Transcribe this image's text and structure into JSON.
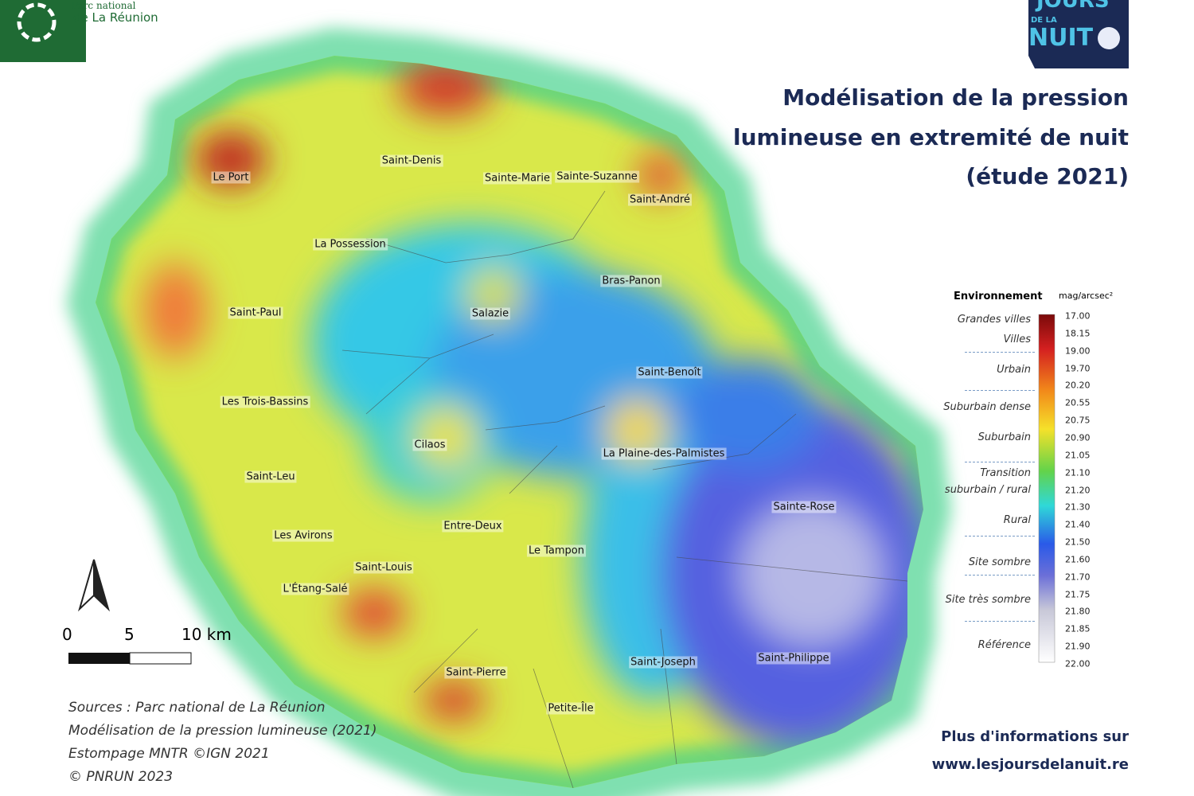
{
  "header": {
    "park_logo": {
      "line1": "Parc national",
      "line2": "de La Réunion"
    },
    "event_logo": {
      "line1": "JOURS",
      "line2": "DE LA",
      "line3": "NUIT"
    }
  },
  "title": {
    "lines": [
      "Modélisation de la pression",
      "lumineuse en extremité de nuit",
      "(étude 2021)"
    ]
  },
  "map": {
    "places": [
      "Le Port",
      "Saint-Denis",
      "Sainte-Marie",
      "Sainte-Suzanne",
      "Saint-André",
      "La Possession",
      "Bras-Panon",
      "Salazie",
      "Saint-Paul",
      "Saint-Benoît",
      "Les Trois-Bassins",
      "Cilaos",
      "La Plaine-des-Palmistes",
      "Saint-Leu",
      "Sainte-Rose",
      "Entre-Deux",
      "Les Avirons",
      "Le Tampon",
      "Saint-Louis",
      "L'Étang-Salé",
      "Saint-Joseph",
      "Saint-Philippe",
      "Saint-Pierre",
      "Petite-Île"
    ],
    "scale_bar": {
      "labels": [
        "0",
        "5",
        "10 km"
      ]
    }
  },
  "legend": {
    "title": "Environnement",
    "unit": "mag/arcsec²",
    "categories": [
      "Grandes villes",
      "Villes",
      "Urbain",
      "Suburbain dense",
      "Suburbain",
      "Transition\nsuburbain / rural",
      "Rural",
      "Site sombre",
      "Site très sombre",
      "Référence"
    ],
    "values": [
      "17.00",
      "18.15",
      "19.00",
      "19.70",
      "20.20",
      "20.55",
      "20.75",
      "20.90",
      "21.05",
      "21.10",
      "21.20",
      "21.30",
      "21.40",
      "21.50",
      "21.60",
      "21.70",
      "21.75",
      "21.80",
      "21.85",
      "21.90",
      "22.00"
    ]
  },
  "sources": {
    "lines": [
      "Sources : Parc national de La Réunion",
      "Modélisation de la pression lumineuse (2021)",
      "Estompage MNTR ©IGN 2021",
      "© PNRUN 2023"
    ]
  },
  "footer": {
    "line1": "Plus d'informations sur",
    "line2": "www.lesjoursdelanuit.re"
  }
}
